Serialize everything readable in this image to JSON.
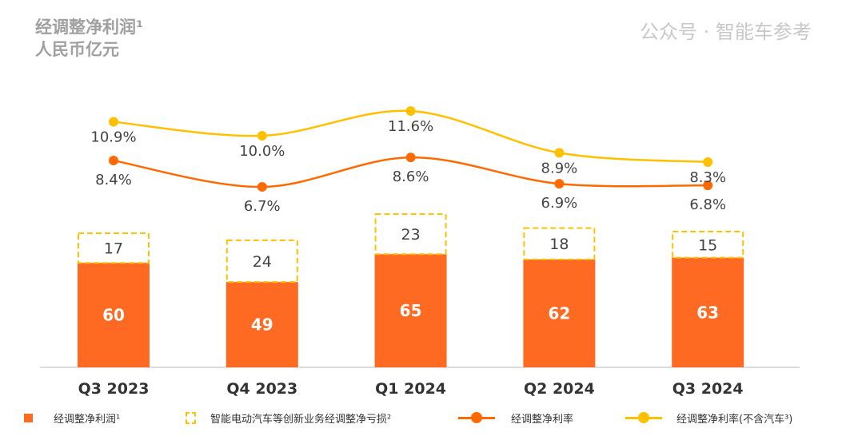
{
  "title": "经调整净利润¹",
  "subtitle": "人民币亿元",
  "watermark": "公众号 · 智能车参考",
  "chart_data": {
    "type": "bar+line",
    "categories": [
      "Q3 2023",
      "Q4 2023",
      "Q1 2024",
      "Q2 2024",
      "Q3 2024"
    ],
    "series": [
      {
        "name": "经调整净利润¹",
        "type": "bar",
        "color": "#ff6a22",
        "values": [
          60,
          49,
          65,
          62,
          63
        ]
      },
      {
        "name": "智能电动汽车等创新业务经调整净亏损²",
        "type": "bar-stacked-dashed",
        "color": "#ffc000",
        "values": [
          17,
          24,
          23,
          18,
          15
        ]
      },
      {
        "name": "经调整净利率",
        "type": "line",
        "color": "#ff6a00",
        "values": [
          8.4,
          6.7,
          8.6,
          6.9,
          6.8
        ],
        "labels": [
          "8.4%",
          "6.7%",
          "8.6%",
          "6.9%",
          "6.8%"
        ]
      },
      {
        "name": "经调整净利率(不含汽车³)",
        "type": "line",
        "color": "#ffc000",
        "values": [
          10.9,
          10.0,
          11.6,
          8.9,
          8.3
        ],
        "labels": [
          "10.9%",
          "10.0%",
          "11.6%",
          "8.9%",
          "8.3%"
        ]
      }
    ],
    "legend": "bottom"
  }
}
